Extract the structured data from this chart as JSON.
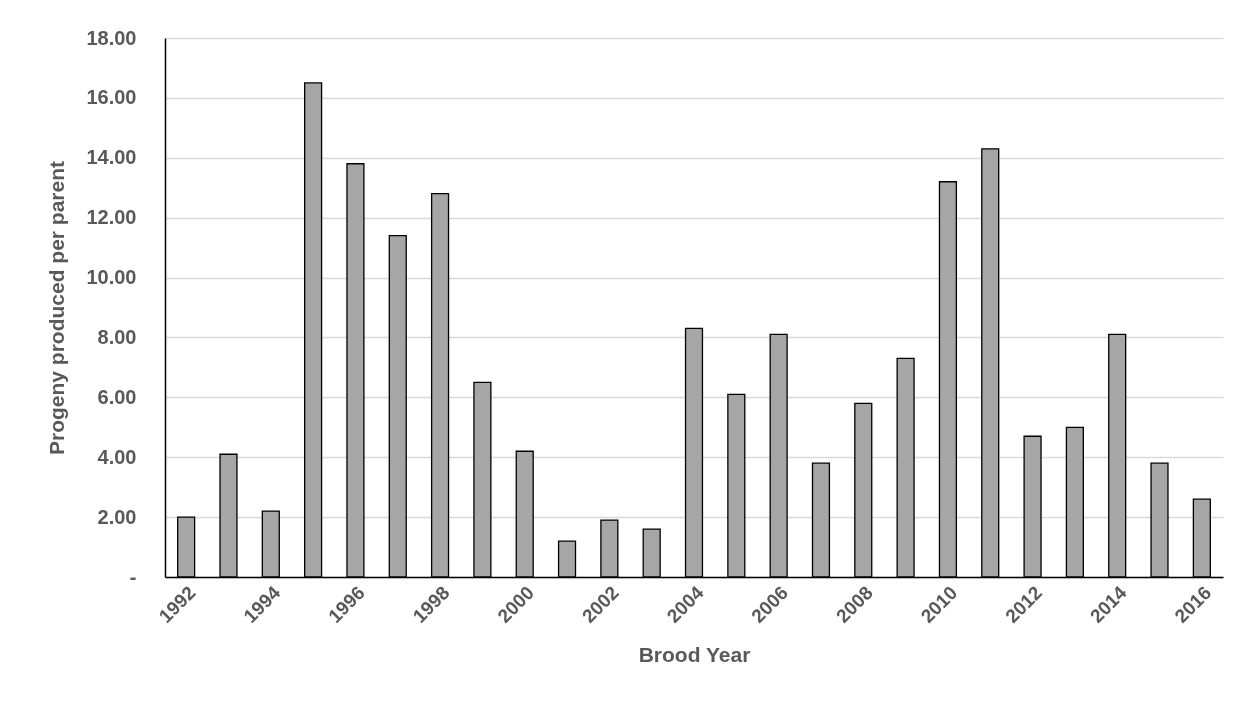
{
  "chart_data": {
    "type": "bar",
    "xlabel": "Brood Year",
    "ylabel": "Progeny produced per parent",
    "categories": [
      "1992",
      null,
      "1994",
      null,
      "1996",
      null,
      "1998",
      null,
      "2000",
      null,
      "2002",
      null,
      "2004",
      null,
      "2006",
      null,
      "2008",
      null,
      "2010",
      null,
      "2012",
      null,
      "2014",
      null,
      "2016"
    ],
    "values": [
      2.0,
      4.1,
      2.2,
      16.5,
      13.8,
      11.4,
      12.8,
      6.5,
      4.2,
      1.2,
      1.9,
      1.6,
      8.3,
      6.1,
      8.1,
      3.8,
      5.8,
      7.3,
      13.2,
      14.3,
      4.7,
      5.0,
      8.1,
      3.8,
      2.6
    ],
    "color": "#a6a6a6",
    "ylim": [
      0,
      18
    ],
    "yticks": [
      {
        "value": 0,
        "label": "-"
      },
      {
        "value": 2,
        "label": "2.00"
      },
      {
        "value": 4,
        "label": "4.00"
      },
      {
        "value": 6,
        "label": "6.00"
      },
      {
        "value": 8,
        "label": "8.00"
      },
      {
        "value": 10,
        "label": "10.00"
      },
      {
        "value": 12,
        "label": "12.00"
      },
      {
        "value": 14,
        "label": "14.00"
      },
      {
        "value": 16,
        "label": "16.00"
      },
      {
        "value": 18,
        "label": "18.00"
      }
    ],
    "grid": "y"
  }
}
